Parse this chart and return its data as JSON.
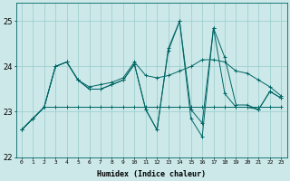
{
  "xlabel": "Humidex (Indice chaleur)",
  "xlim": [
    -0.5,
    23.5
  ],
  "ylim": [
    22.0,
    25.4
  ],
  "yticks": [
    22,
    23,
    24,
    25
  ],
  "xticks": [
    0,
    1,
    2,
    3,
    4,
    5,
    6,
    7,
    8,
    9,
    10,
    11,
    12,
    13,
    14,
    15,
    16,
    17,
    18,
    19,
    20,
    21,
    22,
    23
  ],
  "bg_color": "#cce8e8",
  "grid_color": "#99cccc",
  "line_color": "#006666",
  "series": [
    [
      22.6,
      22.85,
      23.1,
      23.1,
      23.1,
      23.1,
      23.1,
      23.1,
      23.1,
      23.1,
      23.1,
      23.1,
      23.1,
      23.1,
      23.1,
      23.1,
      23.1,
      23.1,
      23.1,
      23.1,
      23.1,
      23.1,
      23.1,
      23.1
    ],
    [
      22.6,
      22.85,
      23.1,
      24.0,
      24.1,
      23.7,
      23.55,
      23.6,
      23.65,
      23.75,
      24.1,
      23.8,
      23.75,
      23.8,
      23.9,
      24.0,
      24.15,
      24.15,
      24.1,
      23.9,
      23.85,
      23.7,
      23.55,
      23.35
    ],
    [
      22.6,
      22.85,
      23.1,
      24.0,
      24.1,
      23.7,
      23.5,
      23.5,
      23.6,
      23.7,
      24.05,
      23.05,
      22.6,
      24.4,
      25.0,
      23.05,
      22.75,
      24.85,
      24.2,
      23.15,
      23.15,
      23.05,
      23.45,
      23.3
    ],
    [
      22.6,
      22.85,
      23.1,
      24.0,
      24.1,
      23.7,
      23.5,
      23.5,
      23.6,
      23.7,
      24.05,
      23.05,
      22.6,
      24.35,
      25.0,
      22.85,
      22.45,
      24.85,
      23.4,
      23.1,
      23.1,
      23.05,
      23.45,
      23.3
    ]
  ]
}
